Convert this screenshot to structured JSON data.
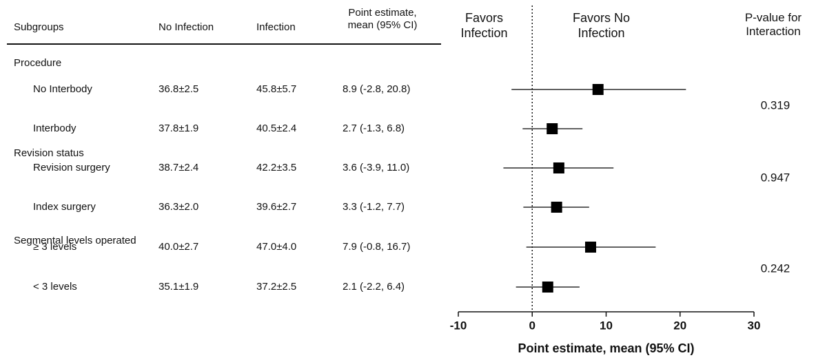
{
  "chart_data": {
    "type": "forest",
    "columns": [
      "Subgroups",
      "No Infection",
      "Infection",
      "Point estimate, mean (95% CI)"
    ],
    "favors_left": "Favors Infection",
    "favors_right": "Favors No Infection",
    "p_value_header": "P-value for Interaction",
    "xlabel": "Point estimate, mean (95% CI)",
    "xlim": [
      -10,
      30
    ],
    "xticks": [
      -10,
      0,
      10,
      20,
      30
    ],
    "reference_line": 0,
    "marker_color": "#000000",
    "groups": [
      {
        "name": "Procedure",
        "p_value": "0.319",
        "rows": [
          {
            "label": "No Interbody",
            "no_infection": "36.8±2.5",
            "infection": "45.8±5.7",
            "estimate_label": "8.9 (-2.8, 20.8)",
            "estimate": 8.9,
            "lower": -2.8,
            "upper": 20.8
          },
          {
            "label": "Interbody",
            "no_infection": "37.8±1.9",
            "infection": "40.5±2.4",
            "estimate_label": "2.7 (-1.3, 6.8)",
            "estimate": 2.7,
            "lower": -1.3,
            "upper": 6.8
          }
        ]
      },
      {
        "name": "Revision status",
        "p_value": "0.947",
        "rows": [
          {
            "label": "Revision surgery",
            "no_infection": "38.7±2.4",
            "infection": "42.2±3.5",
            "estimate_label": "3.6 (-3.9, 11.0)",
            "estimate": 3.6,
            "lower": -3.9,
            "upper": 11.0
          },
          {
            "label": "Index surgery",
            "no_infection": "36.3±2.0",
            "infection": "39.6±2.7",
            "estimate_label": "3.3 (-1.2, 7.7)",
            "estimate": 3.3,
            "lower": -1.2,
            "upper": 7.7
          }
        ]
      },
      {
        "name": "Segmental levels operated",
        "p_value": "0.242",
        "rows": [
          {
            "label": "≥ 3 levels",
            "no_infection": "40.0±2.7",
            "infection": "47.0±4.0",
            "estimate_label": "7.9 (-0.8, 16.7)",
            "estimate": 7.9,
            "lower": -0.8,
            "upper": 16.7
          },
          {
            "label": "< 3 levels",
            "no_infection": "35.1±1.9",
            "infection": "37.2±2.5",
            "estimate_label": "2.1 (-2.2, 6.4)",
            "estimate": 2.1,
            "lower": -2.2,
            "upper": 6.4
          }
        ]
      }
    ]
  }
}
